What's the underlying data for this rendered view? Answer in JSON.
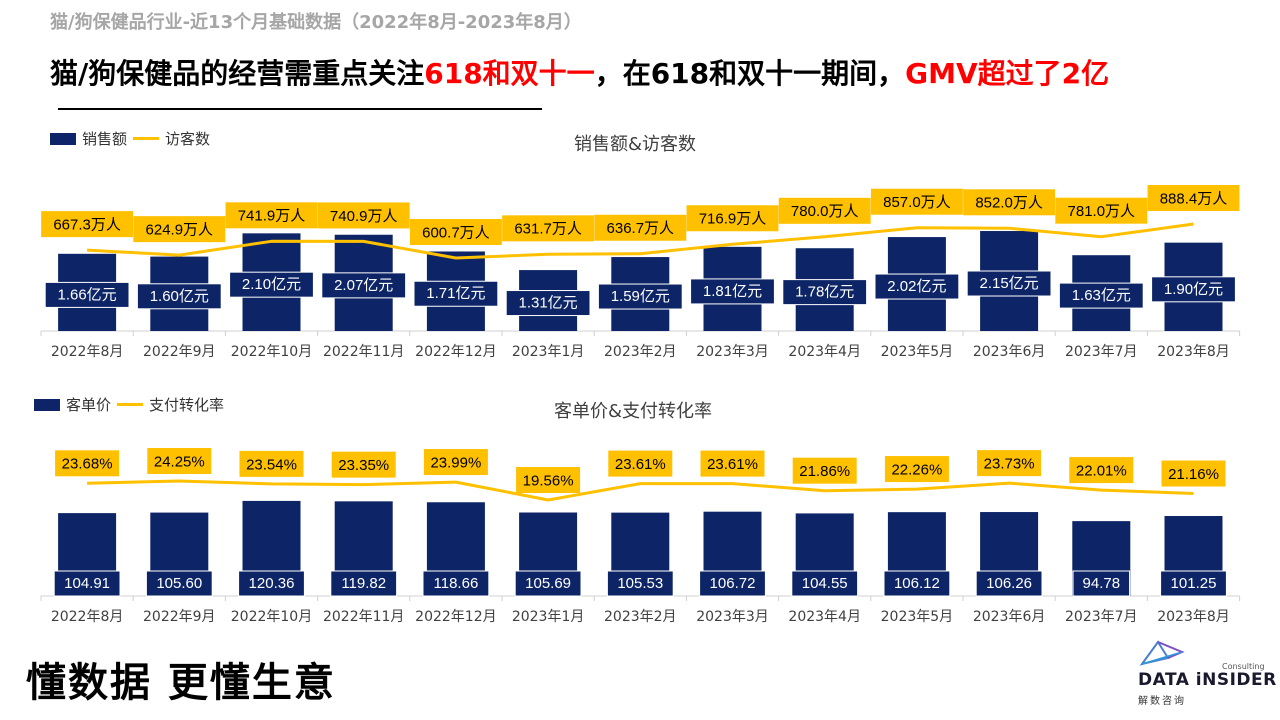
{
  "header": {
    "subtitle": "猫/狗保健品行业-近13个月基础数据（2022年8月-2023年8月）",
    "headline_parts": [
      "猫/狗保健品的经营需重点关注",
      "618和双十一",
      "，在618和双十一期间，",
      "GMV超过了2亿"
    ]
  },
  "footer": {
    "slogan": "懂数据 更懂生意",
    "logo_name": "DATA iNSIDER",
    "logo_consulting": "Consulting",
    "logo_cn": "解数咨询"
  },
  "colors": {
    "bar": "#0d2566",
    "line": "#ffc000",
    "accent_red": "#ff0000"
  },
  "chart_data": [
    {
      "type": "bar",
      "title": "销售额&访客数",
      "categories": [
        "2022年8月",
        "2022年9月",
        "2022年10月",
        "2022年11月",
        "2022年12月",
        "2023年1月",
        "2023年2月",
        "2023年3月",
        "2023年4月",
        "2023年5月",
        "2023年6月",
        "2023年7月",
        "2023年8月"
      ],
      "legend": [
        "销售额",
        "访客数"
      ],
      "series": [
        {
          "name": "销售额",
          "kind": "bar",
          "unit": "亿元",
          "values": [
            1.66,
            1.6,
            2.1,
            2.07,
            1.71,
            1.31,
            1.59,
            1.81,
            1.78,
            2.02,
            2.15,
            1.63,
            1.9
          ],
          "labels": [
            "1.66亿元",
            "1.60亿元",
            "2.10亿元",
            "2.07亿元",
            "1.71亿元",
            "1.31亿元",
            "1.59亿元",
            "1.81亿元",
            "1.78亿元",
            "2.02亿元",
            "2.15亿元",
            "1.63亿元",
            "1.90亿元"
          ]
        },
        {
          "name": "访客数",
          "kind": "line",
          "unit": "万人",
          "values": [
            667.3,
            624.9,
            741.9,
            740.9,
            600.7,
            631.7,
            636.7,
            716.9,
            780.0,
            857.0,
            852.0,
            781.0,
            888.4
          ],
          "labels": [
            "667.3万人",
            "624.9万人",
            "741.9万人",
            "740.9万人",
            "600.7万人",
            "631.7万人",
            "636.7万人",
            "716.9万人",
            "780.0万人",
            "857.0万人",
            "852.0万人",
            "781.0万人",
            "888.4万人"
          ]
        }
      ]
    },
    {
      "type": "bar",
      "title": "客单价&支付转化率",
      "categories": [
        "2022年8月",
        "2022年9月",
        "2022年10月",
        "2022年11月",
        "2022年12月",
        "2023年1月",
        "2023年2月",
        "2023年3月",
        "2023年4月",
        "2023年5月",
        "2023年6月",
        "2023年7月",
        "2023年8月"
      ],
      "legend": [
        "客单价",
        "支付转化率"
      ],
      "series": [
        {
          "name": "客单价",
          "kind": "bar",
          "values": [
            104.91,
            105.6,
            120.36,
            119.82,
            118.66,
            105.69,
            105.53,
            106.72,
            104.55,
            106.12,
            106.26,
            94.78,
            101.25
          ],
          "labels": [
            "104.91",
            "105.60",
            "120.36",
            "119.82",
            "118.66",
            "105.69",
            "105.53",
            "106.72",
            "104.55",
            "106.12",
            "106.26",
            "94.78",
            "101.25"
          ]
        },
        {
          "name": "支付转化率",
          "kind": "line",
          "unit": "%",
          "values": [
            23.68,
            24.25,
            23.54,
            23.35,
            23.99,
            19.56,
            23.61,
            23.61,
            21.86,
            22.26,
            23.73,
            22.01,
            21.16
          ],
          "labels": [
            "23.68%",
            "24.25%",
            "23.54%",
            "23.35%",
            "23.99%",
            "19.56%",
            "23.61%",
            "23.61%",
            "21.86%",
            "22.26%",
            "23.73%",
            "22.01%",
            "21.16%"
          ]
        }
      ]
    }
  ]
}
